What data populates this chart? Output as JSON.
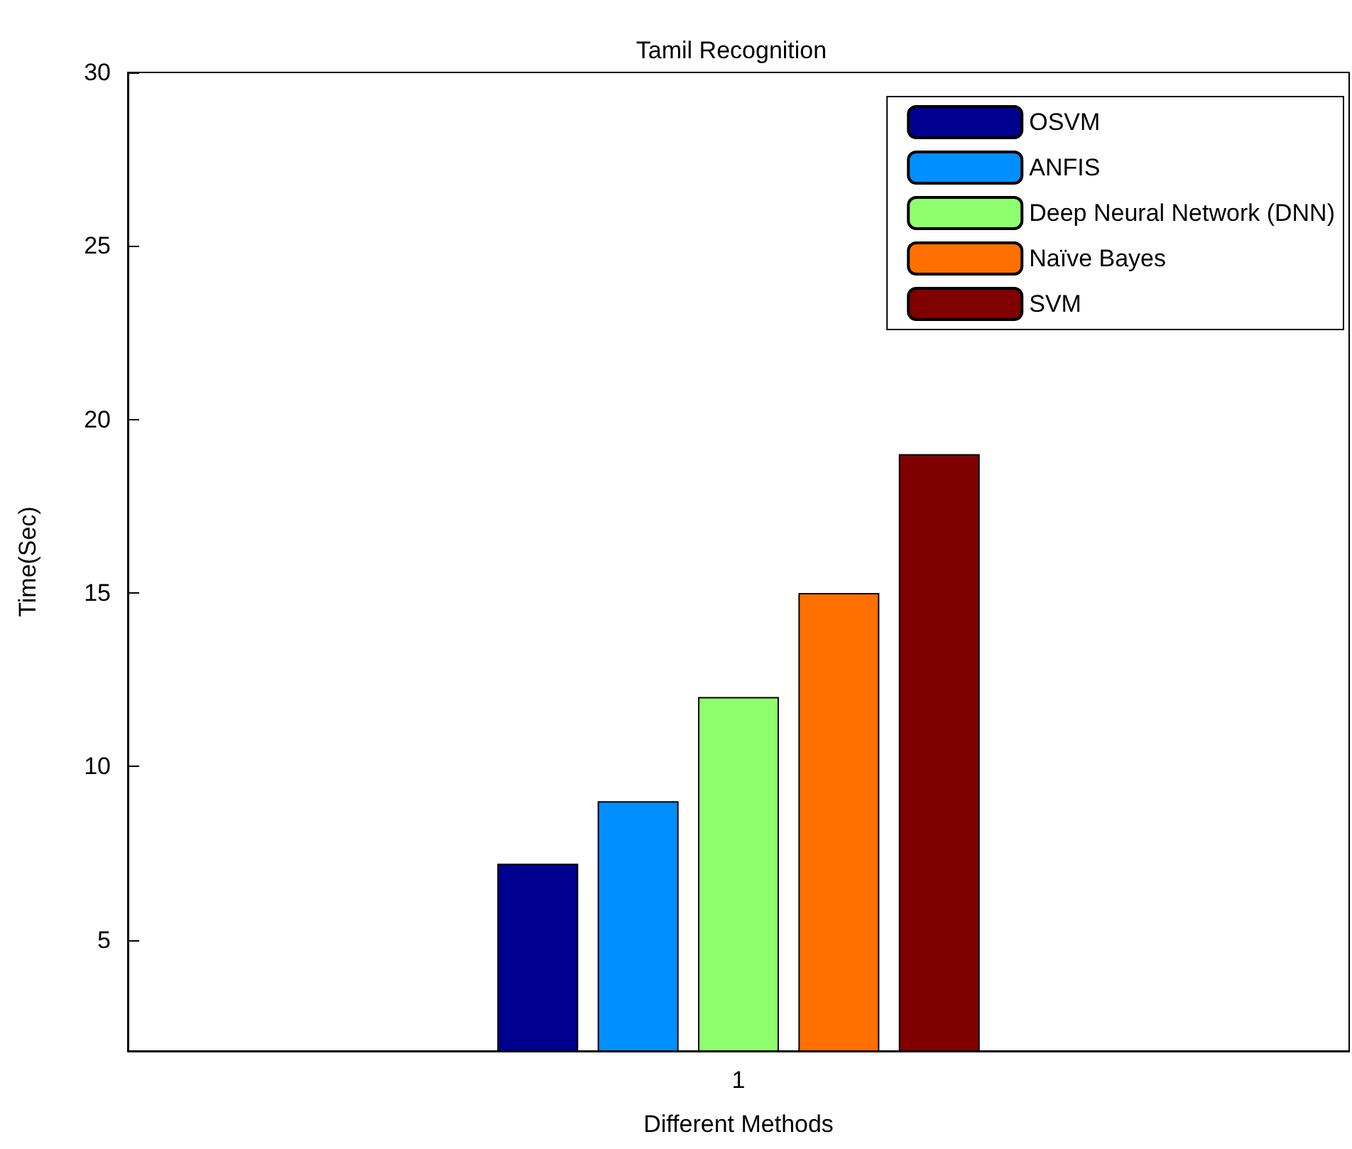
{
  "chart_data": {
    "type": "bar",
    "title": "Tamil Recognition",
    "xlabel": "Different Methods",
    "ylabel": "Time(Sec)",
    "categories": [
      "1"
    ],
    "series": [
      {
        "name": "OSVM",
        "color": "#00008f",
        "values": [
          7.2
        ]
      },
      {
        "name": "ANFIS",
        "color": "#008fff",
        "values": [
          9
        ]
      },
      {
        "name": "Deep Neural Network (DNN)",
        "color": "#8fff70",
        "values": [
          12
        ]
      },
      {
        "name": "Naïve Bayes",
        "color": "#ff7000",
        "values": [
          15
        ]
      },
      {
        "name": "SVM",
        "color": "#800000",
        "values": [
          19
        ]
      }
    ],
    "ylim": [
      1.8,
      30
    ],
    "yticks": [
      5,
      10,
      15,
      20,
      25,
      30
    ],
    "grid": false,
    "legend": "top right"
  }
}
